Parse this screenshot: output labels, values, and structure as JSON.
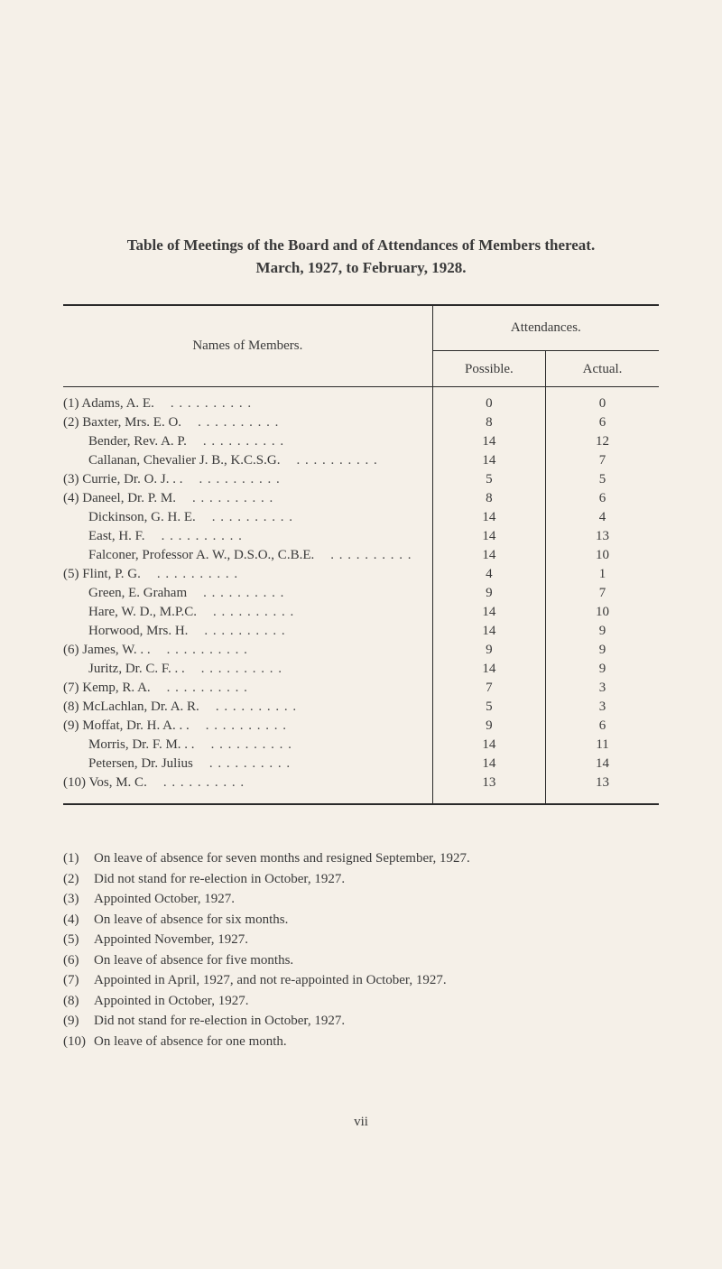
{
  "title_line1": "Table of Meetings of the Board and of Attendances of Members thereat.",
  "title_line2": "March, 1927, to February, 1928.",
  "header": {
    "names_of_members": "Names of Members.",
    "attendances": "Attendances.",
    "possible": "Possible.",
    "actual": "Actual."
  },
  "rows": [
    {
      "idx": "(1)",
      "name": "Adams, A. E.",
      "possible": "0",
      "actual": "0",
      "indent": false
    },
    {
      "idx": "(2)",
      "name": "Baxter, Mrs. E. O.",
      "possible": "8",
      "actual": "6",
      "indent": false
    },
    {
      "idx": "",
      "name": "Bender, Rev. A. P.",
      "possible": "14",
      "actual": "12",
      "indent": true
    },
    {
      "idx": "",
      "name": "Callanan, Chevalier J. B., K.C.S.G.",
      "possible": "14",
      "actual": "7",
      "indent": true
    },
    {
      "idx": "(3)",
      "name": "Currie, Dr. O. J. . .",
      "possible": "5",
      "actual": "5",
      "indent": false
    },
    {
      "idx": "(4)",
      "name": "Daneel, Dr. P. M.",
      "possible": "8",
      "actual": "6",
      "indent": false
    },
    {
      "idx": "",
      "name": "Dickinson, G. H. E.",
      "possible": "14",
      "actual": "4",
      "indent": true
    },
    {
      "idx": "",
      "name": "East, H. F.",
      "possible": "14",
      "actual": "13",
      "indent": true
    },
    {
      "idx": "",
      "name": "Falconer, Professor A. W., D.S.O., C.B.E.",
      "possible": "14",
      "actual": "10",
      "indent": true
    },
    {
      "idx": "(5)",
      "name": "Flint, P. G.",
      "possible": "4",
      "actual": "1",
      "indent": false
    },
    {
      "idx": "",
      "name": "Green, E. Graham",
      "possible": "9",
      "actual": "7",
      "indent": true
    },
    {
      "idx": "",
      "name": "Hare, W. D., M.P.C.",
      "possible": "14",
      "actual": "10",
      "indent": true
    },
    {
      "idx": "",
      "name": "Horwood, Mrs. H.",
      "possible": "14",
      "actual": "9",
      "indent": true
    },
    {
      "idx": "(6)",
      "name": "James, W. . .",
      "possible": "9",
      "actual": "9",
      "indent": false
    },
    {
      "idx": "",
      "name": "Juritz, Dr. C. F. . .",
      "possible": "14",
      "actual": "9",
      "indent": true
    },
    {
      "idx": "(7)",
      "name": "Kemp, R. A.",
      "possible": "7",
      "actual": "3",
      "indent": false
    },
    {
      "idx": "(8)",
      "name": "McLachlan, Dr. A. R.",
      "possible": "5",
      "actual": "3",
      "indent": false
    },
    {
      "idx": "(9)",
      "name": "Moffat, Dr. H. A. . .",
      "possible": "9",
      "actual": "6",
      "indent": false
    },
    {
      "idx": "",
      "name": "Morris, Dr. F. M. . .",
      "possible": "14",
      "actual": "11",
      "indent": true
    },
    {
      "idx": "",
      "name": "Petersen, Dr. Julius",
      "possible": "14",
      "actual": "14",
      "indent": true
    },
    {
      "idx": "(10)",
      "name": "Vos, M. C.",
      "possible": "13",
      "actual": "13",
      "indent": false
    }
  ],
  "footnotes": [
    {
      "num": "(1)",
      "text": "On leave of absence for seven months and resigned September, 1927."
    },
    {
      "num": "(2)",
      "text": "Did not stand for re-election in October, 1927."
    },
    {
      "num": "(3)",
      "text": "Appointed October, 1927."
    },
    {
      "num": "(4)",
      "text": "On leave of absence for six months."
    },
    {
      "num": "(5)",
      "text": "Appointed November, 1927."
    },
    {
      "num": "(6)",
      "text": "On leave of absence for five months."
    },
    {
      "num": "(7)",
      "text": "Appointed in April, 1927, and not re-appointed in October, 1927."
    },
    {
      "num": "(8)",
      "text": "Appointed in October, 1927."
    },
    {
      "num": "(9)",
      "text": "Did not stand for re-election in October, 1927."
    },
    {
      "num": "(10)",
      "text": "On leave of absence for one month."
    }
  ],
  "page_number": "vii"
}
